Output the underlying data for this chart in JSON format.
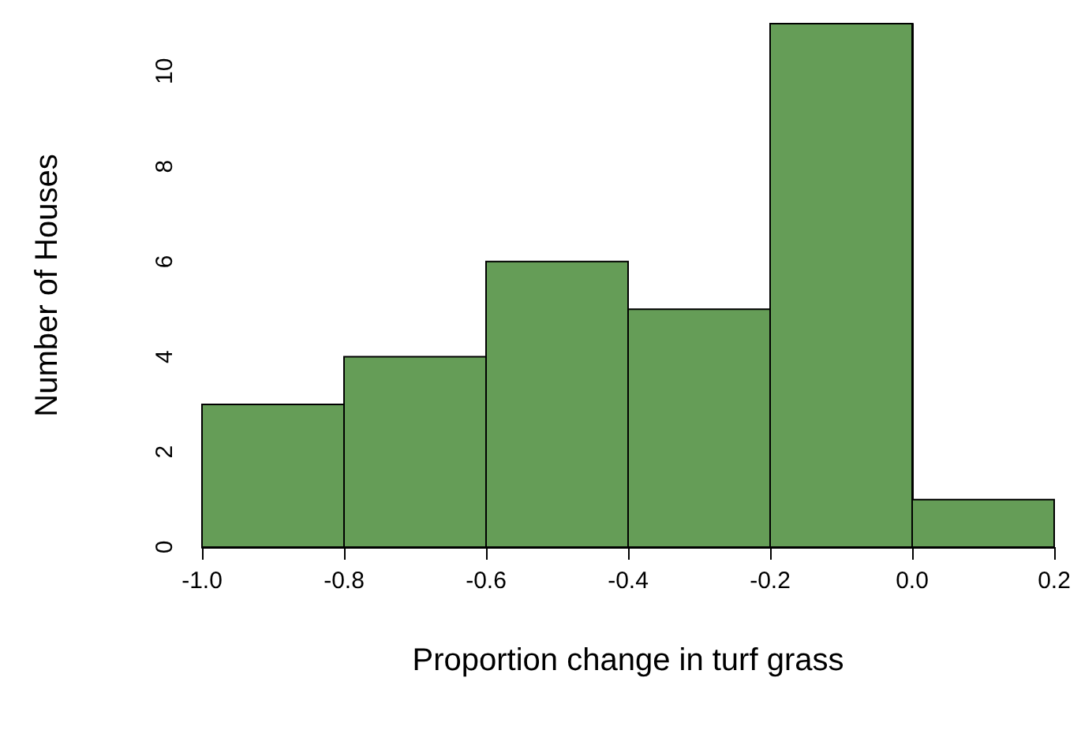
{
  "chart_data": {
    "type": "histogram",
    "xlabel": "Proportion change in turf grass",
    "ylabel": "Number of Houses",
    "bins": [
      -1.0,
      -0.8,
      -0.6,
      -0.4,
      -0.2,
      0.0,
      0.2
    ],
    "values": [
      3,
      4,
      6,
      5,
      11,
      1
    ],
    "color": "#659d57",
    "xlim": [
      -1.0,
      0.2
    ],
    "xticks": [
      {
        "value": -1.0,
        "label": "-1.0"
      },
      -0.8,
      -0.6,
      -0.4,
      -0.2,
      {
        "value": 0.0,
        "label": "0.0"
      },
      0.2
    ],
    "ylim": [
      0,
      11
    ],
    "yticks": [
      0,
      2,
      4,
      6,
      8,
      10
    ]
  }
}
